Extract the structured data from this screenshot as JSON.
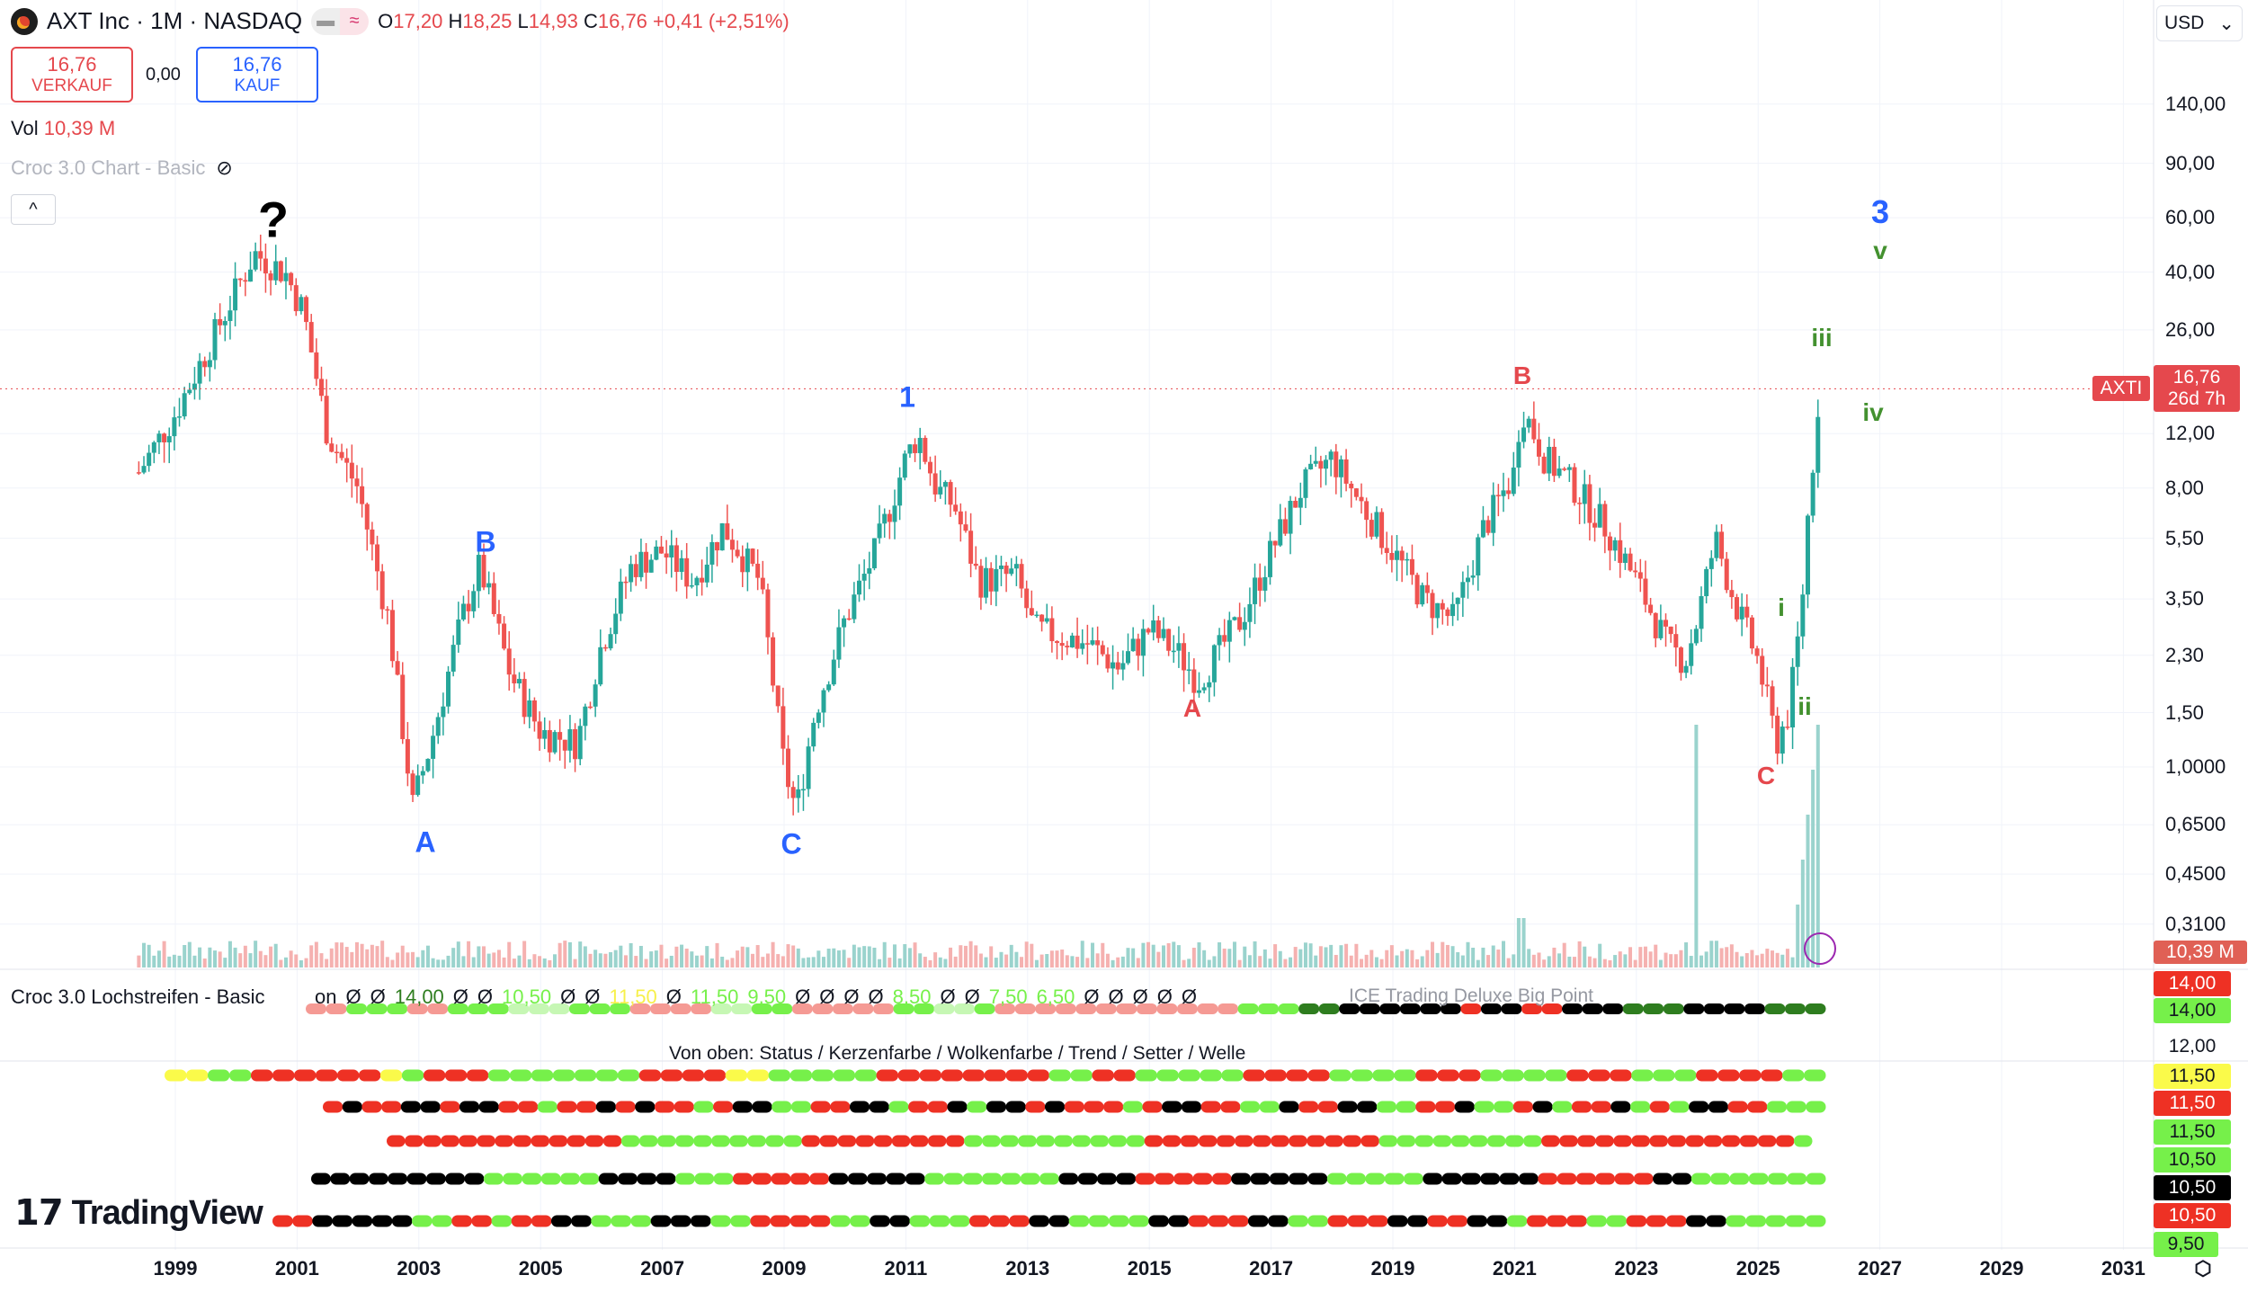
{
  "header": {
    "symbol": "AXT Inc · 1M · NASDAQ",
    "open_label": "O",
    "open": "17,20",
    "high_label": "H",
    "high": "18,25",
    "low_label": "L",
    "low": "14,93",
    "close_label": "C",
    "close": "16,76",
    "change": "+0,41 (+2,51%)"
  },
  "trade": {
    "sell_price": "16,76",
    "sell_label": "VERKAUF",
    "spread": "0,00",
    "buy_price": "16,76",
    "buy_label": "KAUF"
  },
  "volume": {
    "label": "Vol",
    "value": "10,39 M"
  },
  "indicator_chart": {
    "name": "Croc 3.0 Chart - Basic"
  },
  "currency": "USD",
  "price_badge": {
    "ticker": "AXTI",
    "price": "16,76",
    "countdown": "26d 7h"
  },
  "volume_badge": "10,39 M",
  "wave_labels": [
    {
      "text": "?",
      "color": "#000000"
    },
    {
      "text": "A",
      "color": "#2962ff"
    },
    {
      "text": "B",
      "color": "#2962ff"
    },
    {
      "text": "C",
      "color": "#2962ff"
    },
    {
      "text": "1",
      "color": "#2962ff"
    },
    {
      "text": "A",
      "color": "#e5484d"
    },
    {
      "text": "B",
      "color": "#e5484d"
    },
    {
      "text": "C",
      "color": "#e5484d"
    },
    {
      "text": "i",
      "color": "#43912f"
    },
    {
      "text": "ii",
      "color": "#43912f"
    },
    {
      "text": "iii",
      "color": "#43912f"
    },
    {
      "text": "iv",
      "color": "#43912f"
    },
    {
      "text": "v",
      "color": "#43912f"
    },
    {
      "text": "3",
      "color": "#2962ff"
    }
  ],
  "lochstreifen": {
    "title": "Croc 3.0 Lochstreifen - Basic",
    "values": [
      {
        "t": "on",
        "c": "#131722"
      },
      {
        "t": "Ø",
        "c": "#131722"
      },
      {
        "t": "Ø",
        "c": "#131722"
      },
      {
        "t": "14,00",
        "c": "#2e7d1f"
      },
      {
        "t": "Ø",
        "c": "#131722"
      },
      {
        "t": "Ø",
        "c": "#131722"
      },
      {
        "t": "10,50",
        "c": "#76f04a"
      },
      {
        "t": "Ø",
        "c": "#131722"
      },
      {
        "t": "Ø",
        "c": "#131722"
      },
      {
        "t": "11,50",
        "c": "#f7f04a"
      },
      {
        "t": "Ø",
        "c": "#131722"
      },
      {
        "t": "11,50",
        "c": "#76f04a"
      },
      {
        "t": "9,50",
        "c": "#76f04a"
      },
      {
        "t": "Ø",
        "c": "#131722"
      },
      {
        "t": "Ø",
        "c": "#131722"
      },
      {
        "t": "Ø",
        "c": "#131722"
      },
      {
        "t": "Ø",
        "c": "#131722"
      },
      {
        "t": "8,50",
        "c": "#76f04a"
      },
      {
        "t": "Ø",
        "c": "#131722"
      },
      {
        "t": "Ø",
        "c": "#131722"
      },
      {
        "t": "7,50",
        "c": "#76f04a"
      },
      {
        "t": "6,50",
        "c": "#76f04a"
      },
      {
        "t": "Ø",
        "c": "#131722"
      },
      {
        "t": "Ø",
        "c": "#131722"
      },
      {
        "t": "Ø",
        "c": "#131722"
      },
      {
        "t": "Ø",
        "c": "#131722"
      },
      {
        "t": "Ø",
        "c": "#131722"
      }
    ],
    "overlay_text": "ICE Trading Deluxe Big Point",
    "legend": "Von oben: Status / Kerzenfarbe / Wolkenfarbe / Trend / Setter / Welle",
    "rows": [
      "PPGGGPPGGGLLLGGGPPPPLLGGPPPPPGGLLGPPPPPPPPPPPPGGGDDKKKKKKRKKRRKKKDDDKKKKDDD",
      "YYGGRRRRRRYGRRRGGGGGGGRRRRYYGGGGGRRRRRRRRGGRRGGGGGRRRRGGGGRRRGGGGRRRGGGRRRRGG",
      "RKRRKKRKKRRGRRKRKRRGRKKGGRRKKGRRKGKKRKRRRGRKKRRGGKRRKKGGRRKGGRKGRRKGRGKKRRGGG",
      "RRRRRRRRRRRRRGGGGGGGGGGRRRRRRRRRGGGGGGGGGGRRRRRRRRRRRRRGGGGGGGGGRRRRRRRRRRRRRRG",
      "KKKKKKKKKGGGGGGKKKKGGGRRRRRKKKKKGGGGGGGKKKKRRRRRKKKKKGGGGGKKKKKKRRRRRRKKGGGGGGG",
      "RRKKKKKGGRRGRRKKGGGKKKGGRRRRGGKKGGGRRRKKGGGGKKRRRKKGGRRRKKRRKKGRRRGGRRRKKGGGGG"
    ],
    "colors": {
      "R": "#ee3124",
      "G": "#76f04a",
      "Y": "#fafa4a",
      "K": "#000000",
      "P": "#f59a94",
      "L": "#c6f7b4",
      "D": "#2e7d1f"
    }
  },
  "indicator_badges": [
    {
      "text": "14,00",
      "bg": "#ee3124",
      "fg": "#ffffff"
    },
    {
      "text": "14,00",
      "bg": "#76f04a",
      "fg": "#131722"
    },
    {
      "text": "12,00",
      "bg": "transparent",
      "fg": "#131722"
    },
    {
      "text": "11,50",
      "bg": "#fafa4a",
      "fg": "#131722"
    },
    {
      "text": "11,50",
      "bg": "#ee3124",
      "fg": "#ffffff"
    },
    {
      "text": "11,50",
      "bg": "#76f04a",
      "fg": "#131722"
    },
    {
      "text": "10,50",
      "bg": "#76f04a",
      "fg": "#131722"
    },
    {
      "text": "10,50",
      "bg": "#000000",
      "fg": "#ffffff"
    },
    {
      "text": "10,50",
      "bg": "#ee3124",
      "fg": "#ffffff"
    },
    {
      "text": "9,50",
      "bg": "#76f04a",
      "fg": "#131722"
    }
  ],
  "branding": "TradingView",
  "chart_data": {
    "type": "candlestick",
    "scale": "log",
    "grid": true,
    "up_color": "#26a69a",
    "down_color": "#ef5350",
    "y_tick_labels": [
      "140,00",
      "90,00",
      "60,00",
      "40,00",
      "26,00",
      "12,00",
      "8,00",
      "5,50",
      "3,50",
      "2,30",
      "1,50",
      "1,0000",
      "0,6500",
      "0,4500",
      "0,3100"
    ],
    "y_ticks": [
      140,
      90,
      60,
      40,
      26,
      12,
      8,
      5.5,
      3.5,
      2.3,
      1.5,
      1.0,
      0.65,
      0.45,
      0.31
    ],
    "x_tick_labels": [
      "1999",
      "2001",
      "2003",
      "2005",
      "2007",
      "2009",
      "2011",
      "2013",
      "2015",
      "2017",
      "2019",
      "2021",
      "2023",
      "2025",
      "2027",
      "2029",
      "2031"
    ],
    "xlim": [
      1997.3,
      2031.6
    ],
    "close_path": [
      [
        1998.4,
        9
      ],
      [
        1999.0,
        14
      ],
      [
        1999.5,
        22
      ],
      [
        2000.0,
        35
      ],
      [
        2000.3,
        46
      ],
      [
        2000.8,
        40
      ],
      [
        2001.1,
        30
      ],
      [
        2001.5,
        12
      ],
      [
        2002.0,
        8
      ],
      [
        2002.5,
        3
      ],
      [
        2002.9,
        0.75
      ],
      [
        2003.2,
        1.2
      ],
      [
        2003.7,
        3
      ],
      [
        2004.0,
        4.5
      ],
      [
        2004.5,
        2
      ],
      [
        2005.0,
        1.3
      ],
      [
        2005.6,
        1.2
      ],
      [
        2006.0,
        2.5
      ],
      [
        2006.5,
        4.5
      ],
      [
        2007.0,
        5
      ],
      [
        2007.5,
        4
      ],
      [
        2008.0,
        6
      ],
      [
        2008.6,
        4
      ],
      [
        2009.0,
        1
      ],
      [
        2009.2,
        0.72
      ],
      [
        2009.5,
        1.5
      ],
      [
        2010.0,
        3
      ],
      [
        2010.5,
        5
      ],
      [
        2011.0,
        10
      ],
      [
        2011.2,
        12
      ],
      [
        2011.5,
        8
      ],
      [
        2011.8,
        7
      ],
      [
        2012.2,
        4
      ],
      [
        2012.8,
        4.2
      ],
      [
        2013.1,
        2.8
      ],
      [
        2014.0,
        2.5
      ],
      [
        2014.5,
        2.1
      ],
      [
        2015.0,
        2.8
      ],
      [
        2015.5,
        2.3
      ],
      [
        2015.8,
        1.9
      ],
      [
        2016.5,
        3
      ],
      [
        2017.0,
        5
      ],
      [
        2017.5,
        8
      ],
      [
        2018.0,
        10
      ],
      [
        2018.5,
        7
      ],
      [
        2019.0,
        5
      ],
      [
        2019.5,
        3.5
      ],
      [
        2020.0,
        3
      ],
      [
        2020.5,
        6
      ],
      [
        2021.0,
        9
      ],
      [
        2021.1,
        15
      ],
      [
        2021.5,
        10
      ],
      [
        2022.0,
        8
      ],
      [
        2022.5,
        6
      ],
      [
        2023.0,
        4
      ],
      [
        2023.5,
        2.5
      ],
      [
        2023.8,
        2.2
      ],
      [
        2024.0,
        3
      ],
      [
        2024.3,
        5.5
      ],
      [
        2024.6,
        3.5
      ],
      [
        2025.0,
        2.2
      ],
      [
        2025.3,
        1.2
      ],
      [
        2025.5,
        1.5
      ],
      [
        2025.7,
        3
      ],
      [
        2025.85,
        8
      ],
      [
        2025.95,
        12
      ],
      [
        2026.0,
        16.76
      ]
    ],
    "last_price": 16.76
  }
}
